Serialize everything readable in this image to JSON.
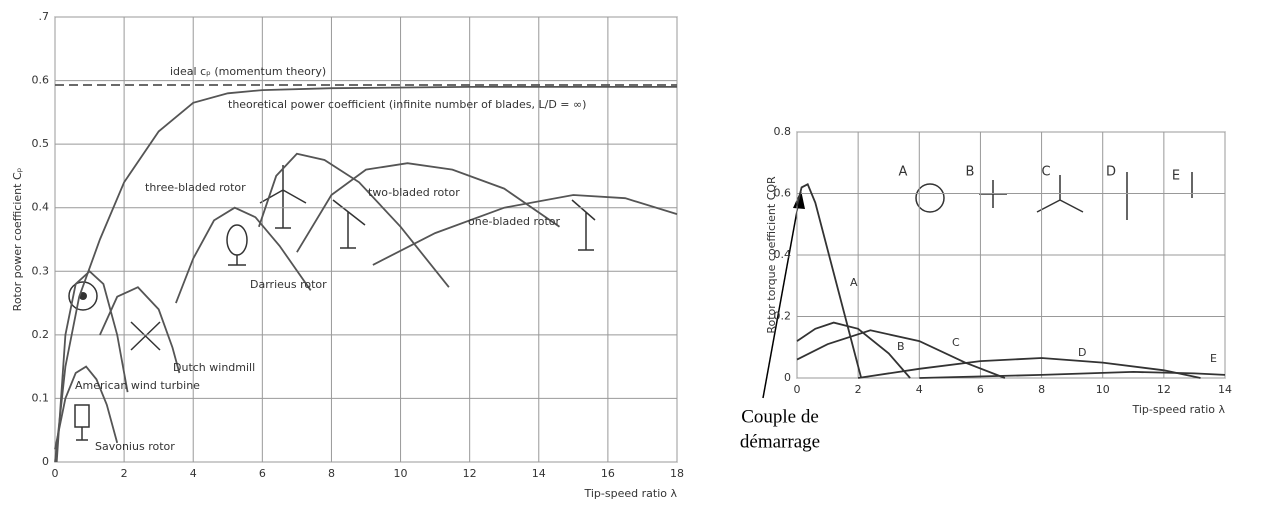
{
  "chart_data": [
    {
      "type": "line",
      "y_label": "Rotor power coefficient Cₚ",
      "x_label": "Tip-speed ratio λ",
      "xlim": [
        0,
        18
      ],
      "ylim": [
        0,
        0.7
      ],
      "xticks": [
        0,
        2,
        4,
        6,
        8,
        10,
        12,
        14,
        16,
        18
      ],
      "yticks": [
        0,
        0.1,
        0.2,
        0.3,
        0.4,
        0.5,
        0.6,
        {
          "value": 0.7,
          "label": ".7"
        }
      ],
      "grid": true,
      "series": [
        {
          "name": "ideal cₚ (momentum theory)",
          "color": "#555555",
          "style": "dashed",
          "x": [
            0,
            18
          ],
          "values": [
            0.593,
            0.593
          ]
        },
        {
          "name": "theoretical power coefficient (infinite number of blades, L/D = ∞)",
          "color": "#555555",
          "x": [
            0,
            0.3,
            0.7,
            1.3,
            2,
            3,
            4,
            5,
            6,
            8,
            12,
            18
          ],
          "values": [
            0,
            0.15,
            0.26,
            0.35,
            0.44,
            0.52,
            0.565,
            0.58,
            0.585,
            0.588,
            0.59,
            0.59
          ]
        },
        {
          "name": "Savonius rotor",
          "color": "#555555",
          "x": [
            0,
            0.3,
            0.6,
            0.9,
            1.2,
            1.5,
            1.8
          ],
          "values": [
            0.02,
            0.1,
            0.14,
            0.15,
            0.13,
            0.09,
            0.03
          ]
        },
        {
          "name": "American wind turbine",
          "color": "#555555",
          "x": [
            0.05,
            0.3,
            0.6,
            1,
            1.4,
            1.8,
            2.1
          ],
          "values": [
            0,
            0.2,
            0.28,
            0.3,
            0.28,
            0.2,
            0.11
          ]
        },
        {
          "name": "Dutch windmill",
          "color": "#555555",
          "x": [
            1.3,
            1.8,
            2.4,
            3,
            3.4,
            3.6
          ],
          "values": [
            0.2,
            0.26,
            0.275,
            0.24,
            0.18,
            0.14
          ]
        },
        {
          "name": "Darrieus rotor",
          "color": "#555555",
          "x": [
            3.5,
            4,
            4.6,
            5.2,
            5.8,
            6.5,
            7.4
          ],
          "values": [
            0.25,
            0.32,
            0.38,
            0.4,
            0.385,
            0.34,
            0.27
          ]
        },
        {
          "name": "three-bladed rotor",
          "color": "#555555",
          "x": [
            5.9,
            6.4,
            7,
            7.8,
            8.8,
            10,
            11.4
          ],
          "values": [
            0.37,
            0.45,
            0.485,
            0.475,
            0.44,
            0.37,
            0.275
          ]
        },
        {
          "name": "two-bladed rotor",
          "color": "#555555",
          "x": [
            7,
            8,
            9,
            10.2,
            11.5,
            13,
            14.6
          ],
          "values": [
            0.33,
            0.42,
            0.46,
            0.47,
            0.46,
            0.43,
            0.37
          ]
        },
        {
          "name": "one-bladed rotor",
          "color": "#555555",
          "x": [
            9.2,
            11,
            13,
            15,
            16.5,
            18
          ],
          "values": [
            0.31,
            0.36,
            0.4,
            0.42,
            0.415,
            0.39
          ]
        }
      ]
    },
    {
      "type": "line",
      "y_label": "Rotor torque coefficient CQR",
      "x_label": "Tip-speed ratio λ",
      "xlim": [
        0,
        14
      ],
      "ylim": [
        0,
        0.8
      ],
      "xticks": [
        0,
        2,
        4,
        6,
        8,
        10,
        12,
        14
      ],
      "yticks": [
        0,
        0.2,
        0.4,
        0.6,
        0.8
      ],
      "grid": true,
      "annotation": [
        "Couple de",
        "démarrage"
      ],
      "series": [
        {
          "name": "A",
          "color": "#333333",
          "x": [
            0,
            0.15,
            0.35,
            0.6,
            2.1
          ],
          "values": [
            0.56,
            0.62,
            0.63,
            0.57,
            0
          ]
        },
        {
          "name": "B",
          "color": "#333333",
          "x": [
            0,
            0.6,
            1.2,
            2,
            3,
            3.7
          ],
          "values": [
            0.12,
            0.16,
            0.18,
            0.16,
            0.08,
            0
          ]
        },
        {
          "name": "C",
          "color": "#333333",
          "x": [
            0,
            1,
            2.4,
            4,
            5.5,
            6.8
          ],
          "values": [
            0.06,
            0.11,
            0.155,
            0.12,
            0.05,
            0
          ]
        },
        {
          "name": "D",
          "color": "#333333",
          "x": [
            2,
            4,
            6,
            8,
            10,
            12,
            13.2
          ],
          "values": [
            0,
            0.03,
            0.055,
            0.065,
            0.05,
            0.025,
            0
          ]
        },
        {
          "name": "E",
          "color": "#333333",
          "x": [
            4,
            8,
            11,
            13,
            14
          ],
          "values": [
            0,
            0.01,
            0.02,
            0.015,
            0.01
          ]
        }
      ]
    }
  ]
}
